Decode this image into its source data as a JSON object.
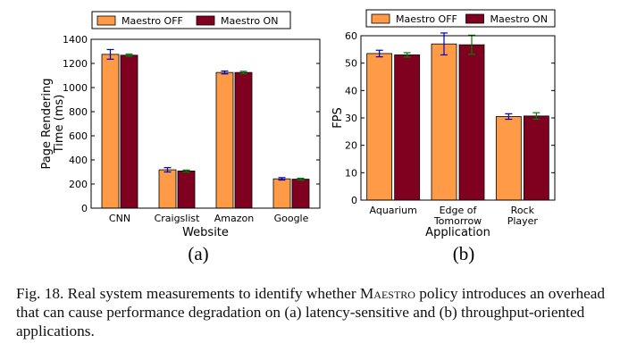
{
  "chart_data": [
    {
      "type": "bar",
      "panel_label": "(a)",
      "xlabel": "Website",
      "ylabel": "Page Rendering\nTime (ms)",
      "ylim": [
        0,
        1400
      ],
      "yticks": [
        0,
        200,
        400,
        600,
        800,
        1000,
        1200,
        1400
      ],
      "categories": [
        "CNN",
        "Craigslist",
        "Amazon",
        "Google"
      ],
      "series": [
        {
          "name": "Maestro OFF",
          "color": "#ff9a46",
          "values": [
            1275,
            318,
            1125,
            243
          ],
          "errors": [
            40,
            18,
            12,
            10
          ],
          "error_color": "#0000cc"
        },
        {
          "name": "Maestro ON",
          "color": "#800020",
          "values": [
            1268,
            308,
            1125,
            240
          ],
          "errors": [
            10,
            8,
            10,
            8
          ],
          "error_color": "#008000"
        }
      ],
      "legend_position": "top",
      "grid": false
    },
    {
      "type": "bar",
      "panel_label": "(b)",
      "xlabel": "Application",
      "ylabel": "FPS",
      "ylim": [
        0,
        60
      ],
      "yticks": [
        0,
        10,
        20,
        30,
        40,
        50,
        60
      ],
      "categories": [
        "Aquarium",
        "Edge of\nTomorrow",
        "Rock\nPlayer"
      ],
      "series": [
        {
          "name": "Maestro OFF",
          "color": "#ff9a46",
          "values": [
            53.5,
            57,
            30.5
          ],
          "errors": [
            1.2,
            4,
            1.0
          ],
          "error_color": "#0000cc"
        },
        {
          "name": "Maestro ON",
          "color": "#800020",
          "values": [
            53,
            56.7,
            30.7
          ],
          "errors": [
            0.8,
            3.5,
            1.2
          ],
          "error_color": "#008000"
        }
      ],
      "legend_position": "top",
      "grid": false
    }
  ],
  "caption": {
    "part1": "Fig. 18.   Real system measurements to identify whether ",
    "smallcaps": "Maestro",
    "part2": " policy introduces an overhead that can cause performance degradation on (a) latency-sensitive and (b) throughput-oriented applications."
  }
}
